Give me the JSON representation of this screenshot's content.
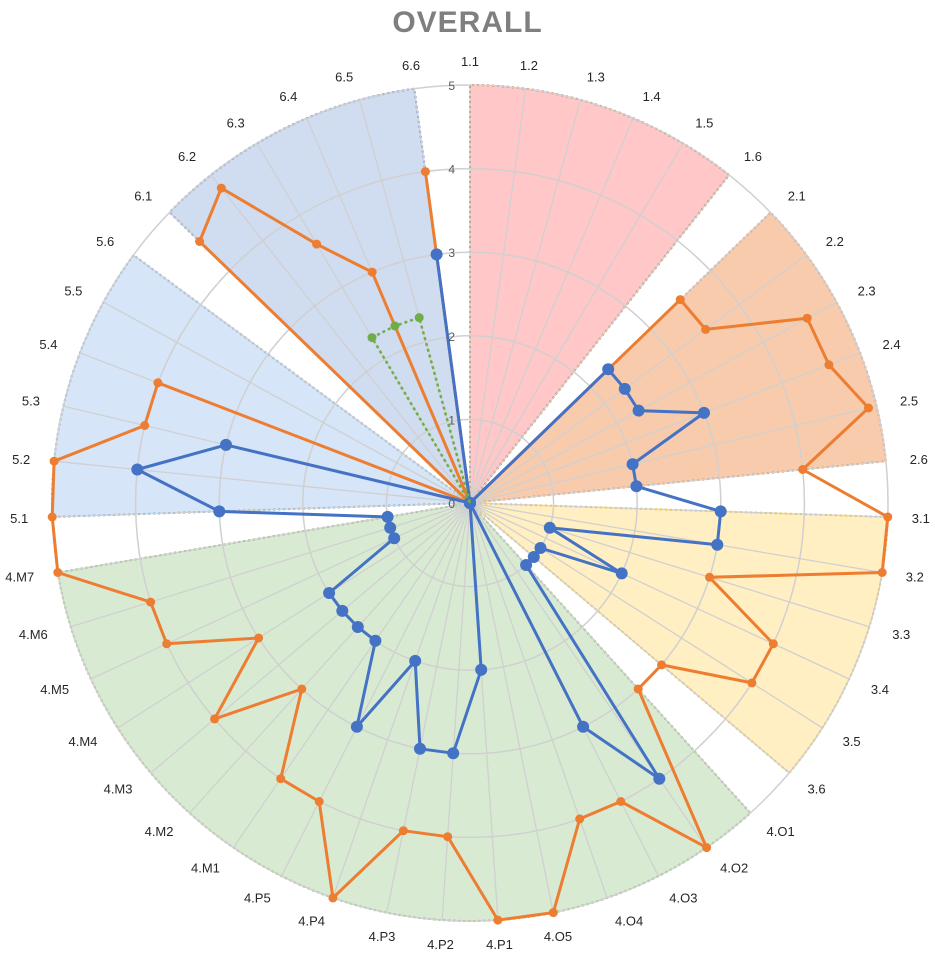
{
  "chart_data": {
    "type": "radar",
    "title": "OVERALL",
    "rlim": [
      0,
      5
    ],
    "r_ticks": [
      "0",
      "1",
      "2",
      "3",
      "4",
      "5"
    ],
    "grid": true,
    "categories": [
      "1.1",
      "1.2",
      "1.3",
      "1.4",
      "1.5",
      "1.6",
      "2.1",
      "2.2",
      "2.3",
      "2.4",
      "2.5",
      "2.6",
      "3.1",
      "3.2",
      "3.3",
      "3.4",
      "3.5",
      "3.6",
      "4.O1",
      "4.O2",
      "4.O3",
      "4.O4",
      "4.O5",
      "4.P1",
      "4.P2",
      "4.P3",
      "4.P4",
      "4.P5",
      "4.M1",
      "4.M2",
      "4.M3",
      "4.M4",
      "4.M5",
      "4.M6",
      "4.M7",
      "5.1",
      "5.2",
      "5.3",
      "5.4",
      "5.5",
      "5.6",
      "6.1",
      "6.2",
      "6.3",
      "6.4",
      "6.5",
      "6.6"
    ],
    "sectors": [
      {
        "group": "1",
        "from": 0,
        "to": 5,
        "fill": "#ffc7c7",
        "stroke": "#c55a11"
      },
      {
        "group": "2",
        "from": 6,
        "to": 11,
        "fill": "#f8cbad",
        "stroke": "#e07b39"
      },
      {
        "group": "3",
        "from": 12,
        "to": 17,
        "fill": "#ffefc2",
        "stroke": "#f2b600"
      },
      {
        "group": "4",
        "from": 18,
        "to": 34,
        "fill": "#d9ead3",
        "stroke": "#70ad47"
      },
      {
        "group": "5",
        "from": 35,
        "to": 40,
        "fill": "#d6e5f7",
        "stroke": "#5b9bd5"
      },
      {
        "group": "6",
        "from": 41,
        "to": 46,
        "fill": "#d0dcf0",
        "stroke": "#4472c4"
      }
    ],
    "series": [
      {
        "color": "#ed7d31",
        "values": [
          0,
          0,
          0,
          0,
          0,
          0,
          3.5,
          3.5,
          4.6,
          4.6,
          4.9,
          4.0,
          5.0,
          5.0,
          3.0,
          4.0,
          4.0,
          3.0,
          3.0,
          5.0,
          4.0,
          4.0,
          5.0,
          5.0,
          4.0,
          4.0,
          5.0,
          4.0,
          4.0,
          3.0,
          4.0,
          3.0,
          4.0,
          4.0,
          5.0,
          5.0,
          5.0,
          4.0,
          4.0,
          0,
          0,
          4.5,
          4.8,
          3.6,
          3.0,
          0,
          4.0
        ]
      },
      {
        "color": "#4472c4",
        "values": [
          0,
          0,
          0,
          0,
          0,
          0,
          2.3,
          2.3,
          2.3,
          3.0,
          2.0,
          2.0,
          3.0,
          3.0,
          1.0,
          2.0,
          1.0,
          1.0,
          1.0,
          4.0,
          3.0,
          0,
          0,
          2.0,
          3.0,
          3.0,
          2.0,
          3.0,
          2.0,
          2.0,
          2.0,
          2.0,
          1.0,
          1.0,
          1.0,
          3.0,
          4.0,
          3.0,
          0,
          0,
          0,
          0,
          0,
          0,
          0,
          0,
          3.0
        ]
      },
      {
        "color": "#70ad47",
        "dashed": true,
        "values": [
          0,
          0,
          0,
          0,
          0,
          0,
          0,
          0,
          0,
          0,
          0,
          0,
          0,
          0,
          0,
          0,
          0,
          0,
          0,
          0,
          0,
          0,
          0,
          0,
          0,
          0,
          0,
          0,
          0,
          0,
          0,
          0,
          0,
          0,
          0,
          0,
          0,
          0,
          0,
          0,
          0,
          0,
          0,
          2.3,
          2.3,
          2.3,
          0
        ]
      }
    ]
  }
}
